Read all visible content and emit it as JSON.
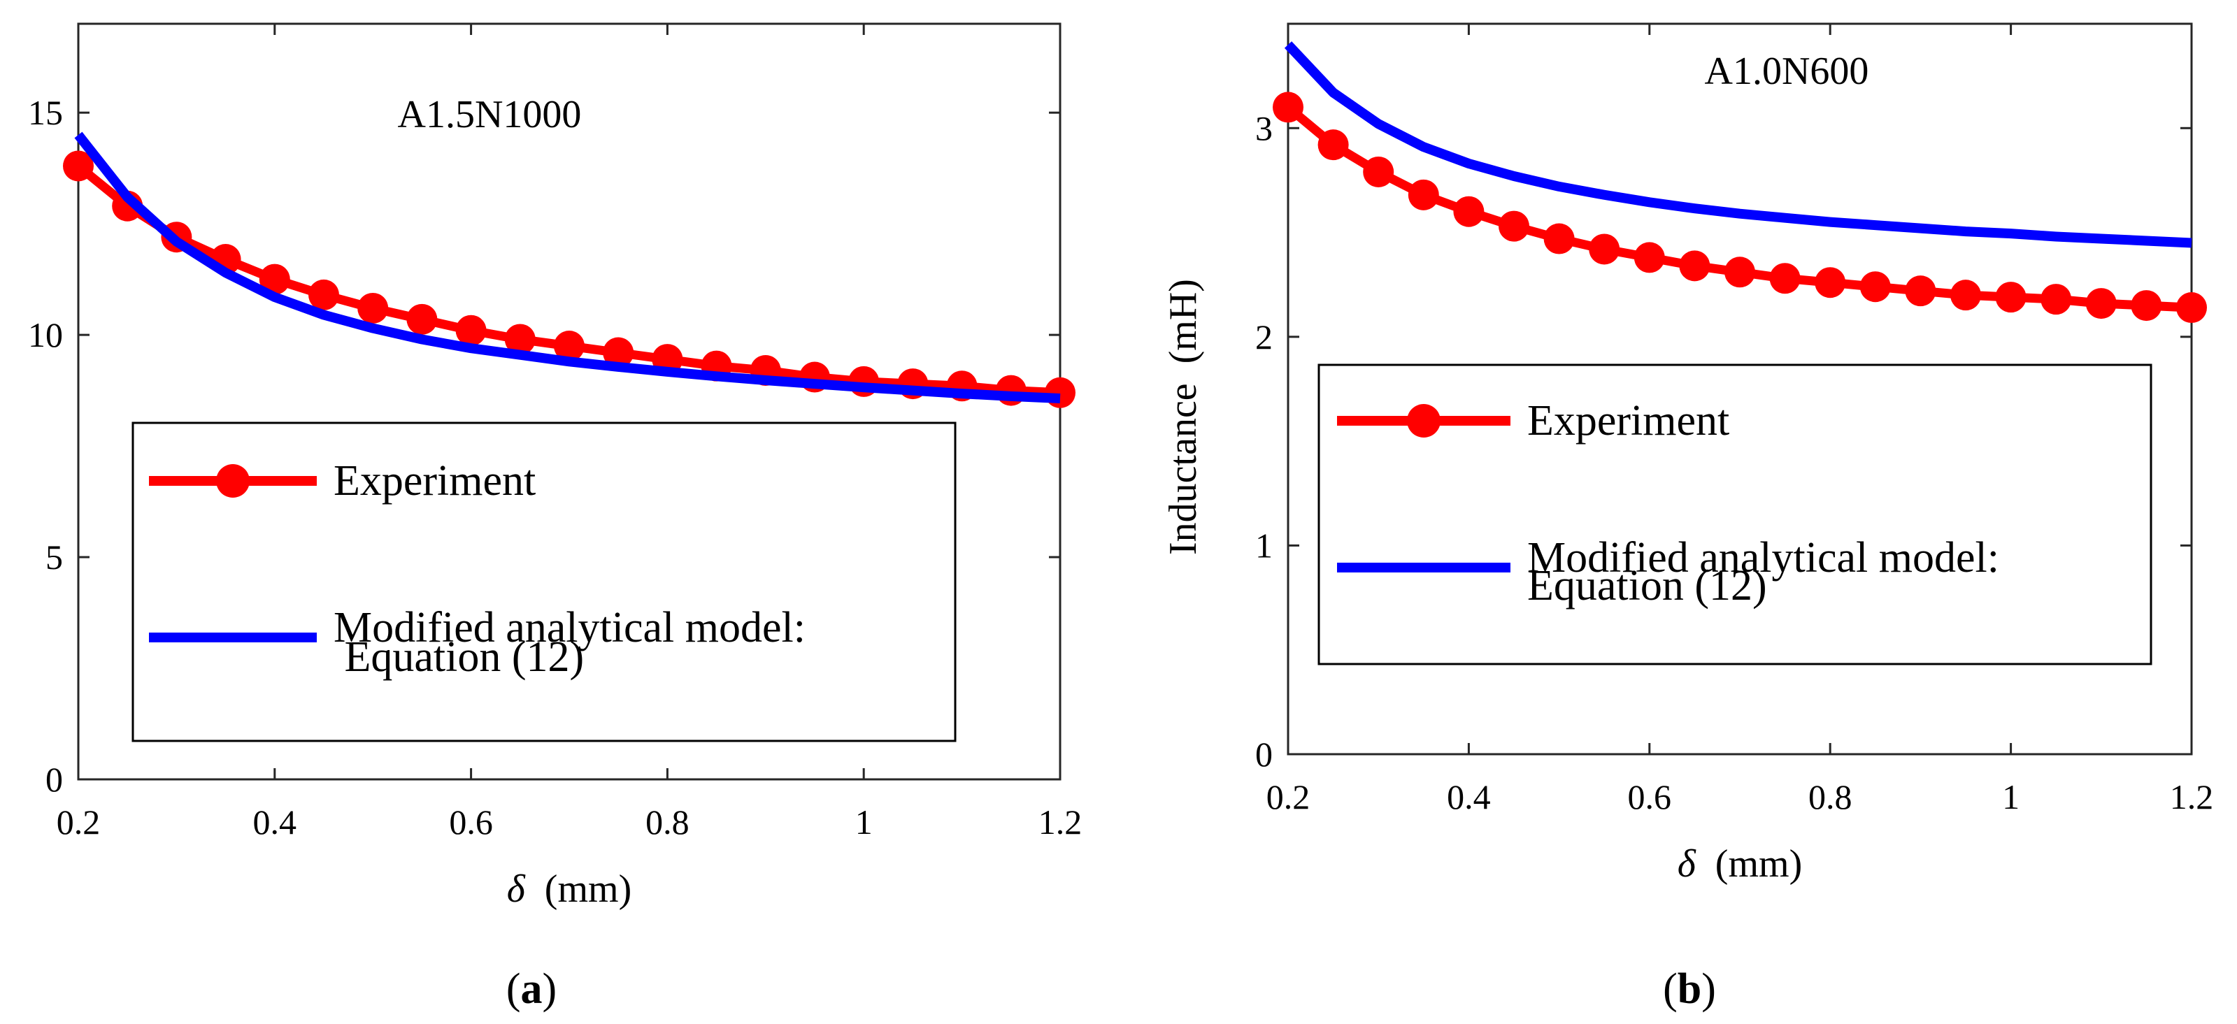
{
  "chart_data": [
    {
      "type": "line",
      "panel_label": "a",
      "annotation": "A1.5N1000",
      "xlabel_symbol": "δ",
      "xlabel_unit": "(mm)",
      "ylabel": "",
      "xlim": [
        0.2,
        1.2
      ],
      "ylim": [
        0,
        17
      ],
      "xticks": [
        0.2,
        0.4,
        0.6,
        0.8,
        1,
        1.2
      ],
      "xtick_labels": [
        "0.2",
        "0.4",
        "0.6",
        "0.8",
        "1",
        "1.2"
      ],
      "yticks": [
        0,
        5,
        10,
        15
      ],
      "ytick_labels": [
        "0",
        "5",
        "10",
        "15"
      ],
      "legend_position": "lower-left",
      "x": [
        0.2,
        0.25,
        0.3,
        0.35,
        0.4,
        0.45,
        0.5,
        0.55,
        0.6,
        0.65,
        0.7,
        0.75,
        0.8,
        0.85,
        0.9,
        0.95,
        1.0,
        1.05,
        1.1,
        1.15,
        1.2
      ],
      "series": [
        {
          "name": "Experiment",
          "marker": "circle",
          "color": "#ff0000",
          "values": [
            13.8,
            12.9,
            12.2,
            11.7,
            11.25,
            10.9,
            10.6,
            10.35,
            10.1,
            9.9,
            9.75,
            9.6,
            9.45,
            9.3,
            9.2,
            9.05,
            8.95,
            8.9,
            8.85,
            8.75,
            8.7
          ]
        },
        {
          "name": [
            "Modified analytical model:",
            " Equation (12)"
          ],
          "marker": "none",
          "color": "#0000ff",
          "values": [
            14.5,
            13.1,
            12.1,
            11.4,
            10.85,
            10.45,
            10.15,
            9.9,
            9.7,
            9.55,
            9.4,
            9.28,
            9.17,
            9.07,
            8.98,
            8.9,
            8.82,
            8.75,
            8.68,
            8.62,
            8.57
          ]
        }
      ]
    },
    {
      "type": "line",
      "panel_label": "b",
      "annotation": "A1.0N600",
      "xlabel_symbol": "δ",
      "xlabel_unit": "(mm)",
      "ylabel": "Inductance  (mH)",
      "xlim": [
        0.2,
        1.2
      ],
      "ylim": [
        0,
        3.5
      ],
      "xticks": [
        0.2,
        0.4,
        0.6,
        0.8,
        1,
        1.2
      ],
      "xtick_labels": [
        "0.2",
        "0.4",
        "0.6",
        "0.8",
        "1",
        "1.2"
      ],
      "yticks": [
        0,
        1,
        2,
        3
      ],
      "ytick_labels": [
        "0",
        "1",
        "2",
        "3"
      ],
      "legend_position": "lower-left",
      "x": [
        0.2,
        0.25,
        0.3,
        0.35,
        0.4,
        0.45,
        0.5,
        0.55,
        0.6,
        0.65,
        0.7,
        0.75,
        0.8,
        0.85,
        0.9,
        0.95,
        1.0,
        1.05,
        1.1,
        1.15,
        1.2
      ],
      "series": [
        {
          "name": "Experiment",
          "marker": "circle",
          "color": "#ff0000",
          "values": [
            3.1,
            2.92,
            2.79,
            2.68,
            2.6,
            2.53,
            2.47,
            2.42,
            2.38,
            2.34,
            2.31,
            2.28,
            2.26,
            2.24,
            2.22,
            2.2,
            2.19,
            2.18,
            2.16,
            2.15,
            2.14
          ]
        },
        {
          "name": [
            "Modified analytical model:",
            "Equation (12)"
          ],
          "marker": "none",
          "color": "#0000ff",
          "values": [
            3.4,
            3.17,
            3.02,
            2.91,
            2.83,
            2.77,
            2.72,
            2.68,
            2.645,
            2.615,
            2.59,
            2.57,
            2.55,
            2.535,
            2.52,
            2.505,
            2.495,
            2.48,
            2.47,
            2.46,
            2.45
          ]
        }
      ]
    }
  ]
}
